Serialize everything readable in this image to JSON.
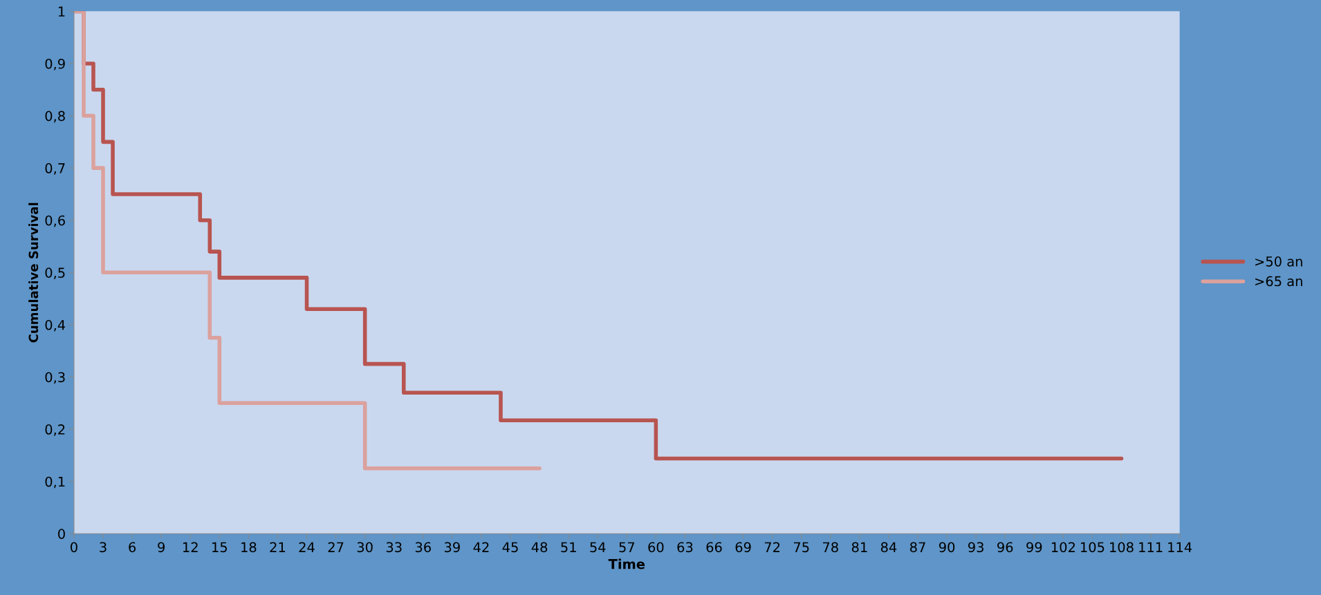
{
  "chart_data": {
    "type": "step",
    "xlabel": "Time",
    "ylabel": "Cumulative Survival",
    "series": [
      {
        "name": ">50 an",
        "color": "#b85450",
        "x": [
          0,
          1,
          2,
          3,
          4,
          13,
          14,
          15,
          24,
          30,
          34,
          44,
          60,
          108
        ],
        "values": [
          1,
          0.9,
          0.85,
          0.75,
          0.65,
          0.6,
          0.54,
          0.49,
          0.43,
          0.325,
          0.27,
          0.217,
          0.144,
          0.144
        ]
      },
      {
        "name": ">65 an",
        "color": "#dba19d",
        "x": [
          0,
          1,
          2,
          3,
          14,
          15,
          30,
          48
        ],
        "values": [
          1,
          0.8,
          0.7,
          0.5,
          0.375,
          0.25,
          0.125,
          0.125
        ]
      }
    ],
    "xlim": [
      0,
      114
    ],
    "xticks": [
      0,
      3,
      6,
      9,
      12,
      15,
      18,
      21,
      24,
      27,
      30,
      33,
      36,
      39,
      42,
      45,
      48,
      51,
      54,
      57,
      60,
      63,
      66,
      69,
      72,
      75,
      78,
      81,
      84,
      87,
      90,
      93,
      96,
      99,
      102,
      105,
      108,
      111,
      114
    ],
    "ylim": [
      0,
      1
    ],
    "yticks": [
      0,
      {
        "value": 0.1,
        "label": "0,1"
      },
      {
        "value": 0.2,
        "label": "0,2"
      },
      {
        "value": 0.3,
        "label": "0,3"
      },
      {
        "value": 0.4,
        "label": "0,4"
      },
      {
        "value": 0.5,
        "label": "0,5"
      },
      {
        "value": 0.6,
        "label": "0,6"
      },
      {
        "value": 0.7,
        "label": "0,7"
      },
      {
        "value": 0.8,
        "label": "0,8"
      },
      {
        "value": 0.9,
        "label": "0,9"
      },
      1
    ],
    "grid": false,
    "legend": "right"
  }
}
